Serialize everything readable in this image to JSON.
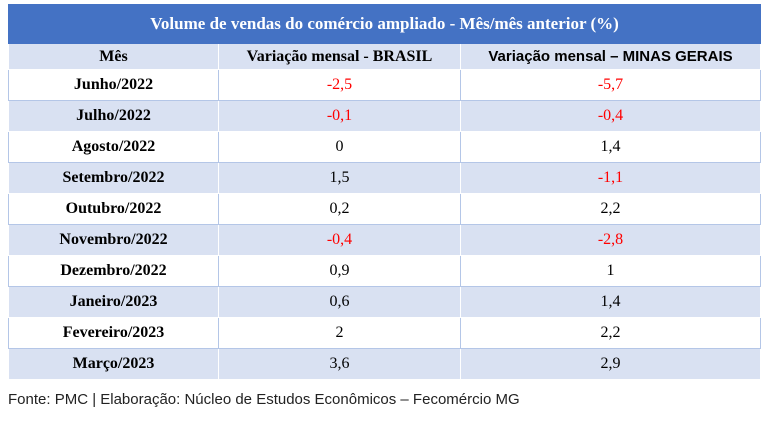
{
  "table": {
    "title": "Volume de vendas do comércio ampliado - Mês/mês anterior (%)",
    "header": [
      "Mês",
      "Variação mensal - BRASIL",
      "Variação mensal – MINAS GERAIS"
    ],
    "rows": [
      [
        "Junho/2022",
        "-2,5",
        "-5,7"
      ],
      [
        "Julho/2022",
        "-0,1",
        "-0,4"
      ],
      [
        "Agosto/2022",
        "0",
        "1,4"
      ],
      [
        "Setembro/2022",
        "1,5",
        "-1,1"
      ],
      [
        "Outubro/2022",
        "0,2",
        "2,2"
      ],
      [
        "Novembro/2022",
        "-0,4",
        "-2,8"
      ],
      [
        "Dezembro/2022",
        "0,9",
        "1"
      ],
      [
        "Janeiro/2023",
        "0,6",
        "1,4"
      ],
      [
        "Fevereiro/2023",
        "2",
        "2,2"
      ],
      [
        "Março/2023",
        "3,6",
        "2,9"
      ]
    ],
    "negative_color": "#ff0000"
  },
  "source": "Fonte: PMC | Elaboração: Núcleo de Estudos Econômicos – Fecomércio MG"
}
